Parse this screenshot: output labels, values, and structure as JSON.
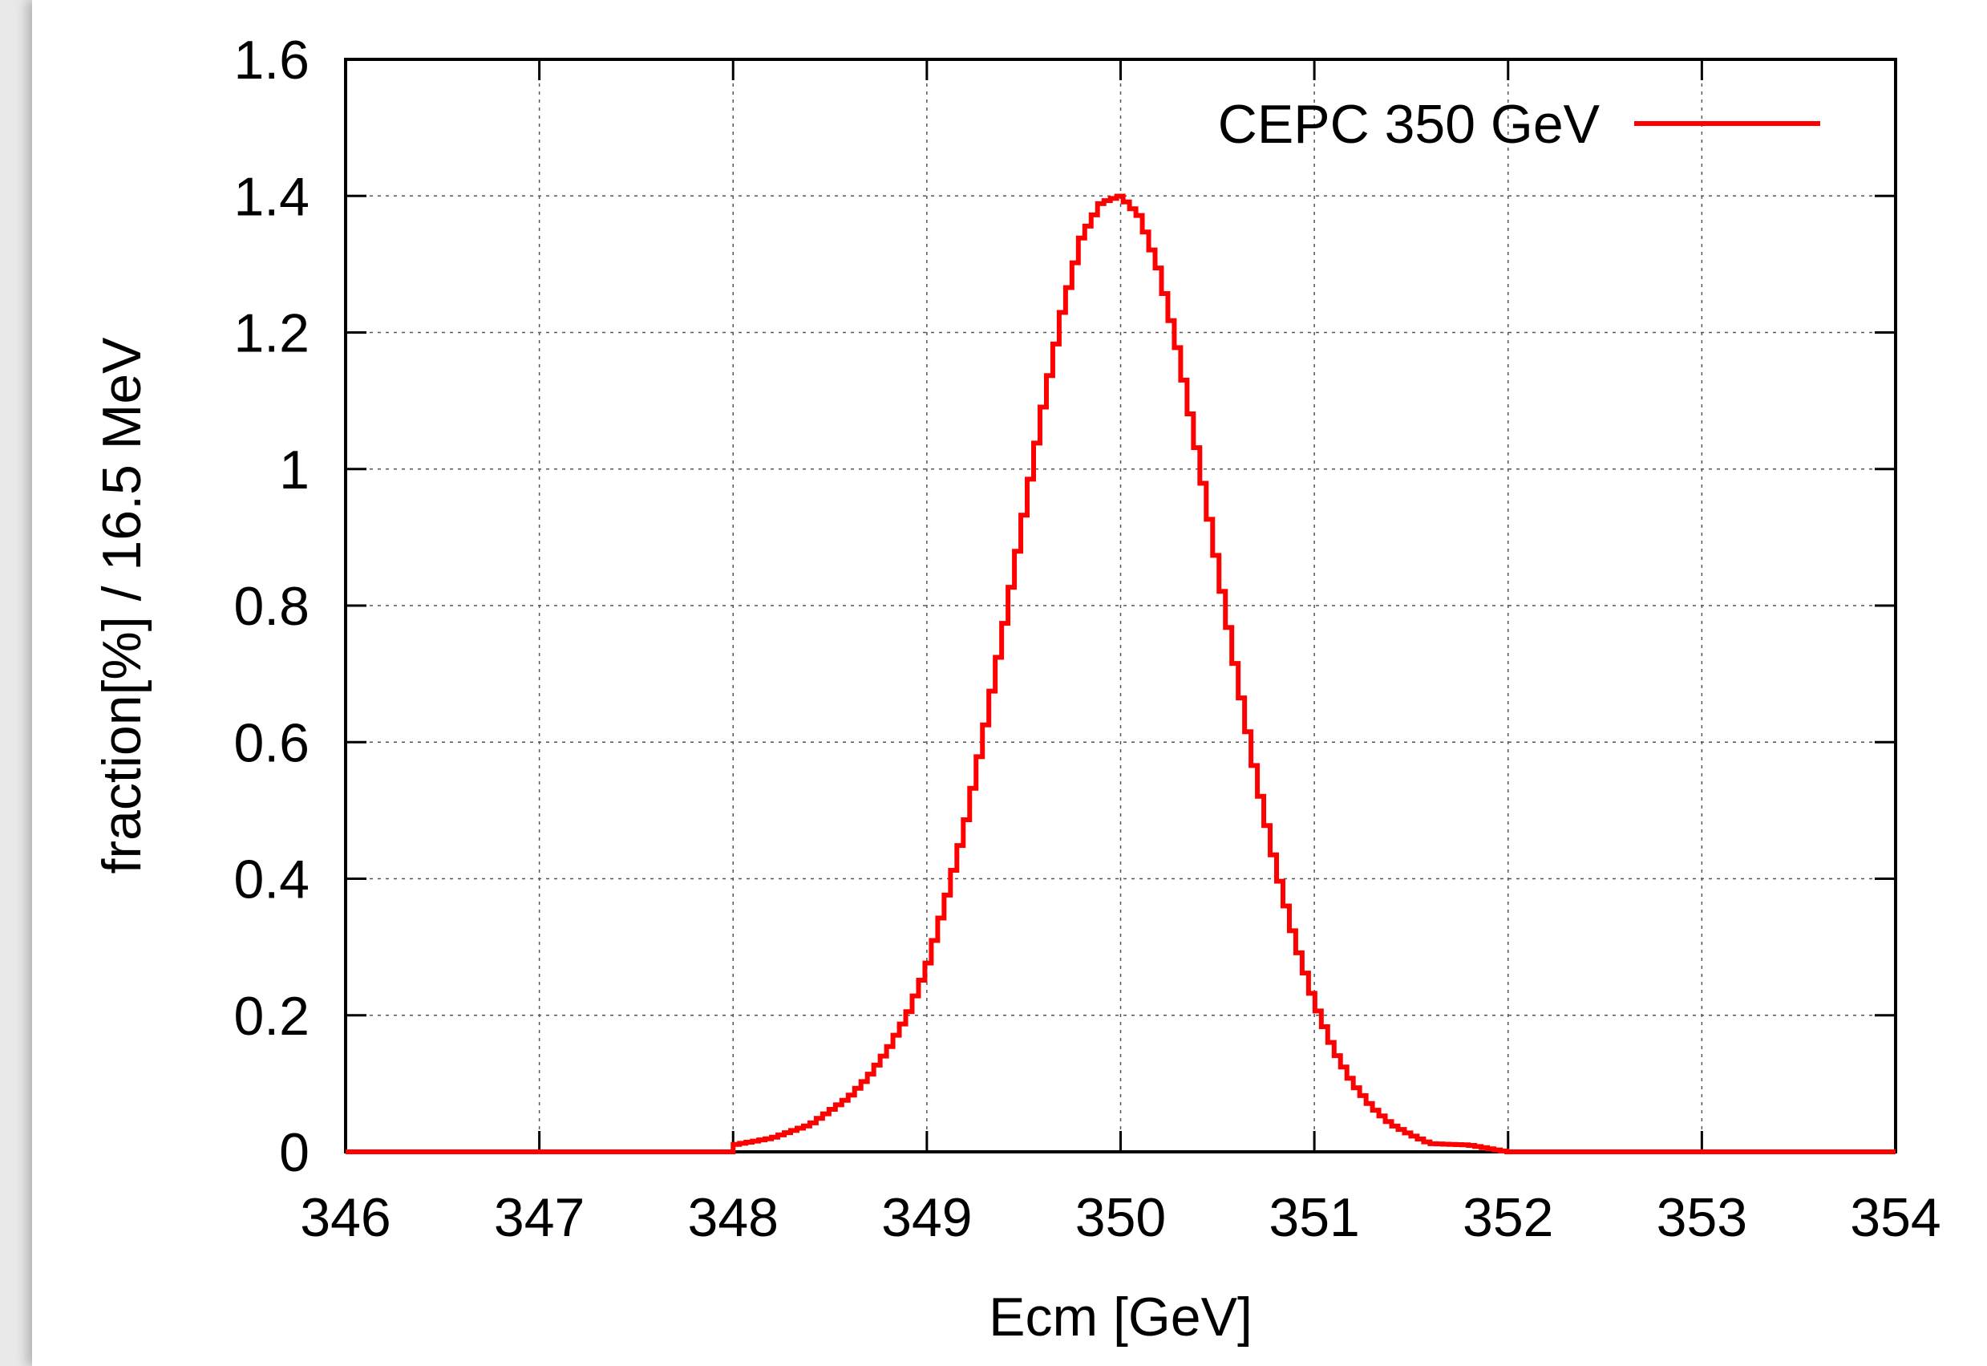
{
  "chart_data": {
    "type": "line",
    "title": "",
    "xlabel": "Ecm [GeV]",
    "ylabel": "fraction[%] / 16.5 MeV",
    "xlim": [
      346,
      354
    ],
    "ylim": [
      0,
      1.6
    ],
    "x_ticks": [
      "346",
      "347",
      "348",
      "349",
      "350",
      "351",
      "352",
      "353",
      "354"
    ],
    "y_ticks": [
      "0",
      "0.2",
      "0.4",
      "0.6",
      "0.8",
      "1",
      "1.2",
      "1.4",
      "1.6"
    ],
    "grid": true,
    "legend_position": "top-right",
    "series": [
      {
        "name": "CEPC 350 GeV",
        "color": "#ff0000",
        "style": "histogram-step",
        "x": [
          346.0,
          348.0,
          348.2,
          348.4,
          348.5,
          348.6,
          348.7,
          348.8,
          348.9,
          349.0,
          349.1,
          349.2,
          349.3,
          349.4,
          349.5,
          349.6,
          349.7,
          349.8,
          349.9,
          350.0,
          350.1,
          350.2,
          350.3,
          350.4,
          350.5,
          350.6,
          350.7,
          350.8,
          350.9,
          351.0,
          351.1,
          351.2,
          351.3,
          351.4,
          351.5,
          351.6,
          351.8,
          352.0,
          354.0
        ],
        "y": [
          0.0,
          0.01,
          0.02,
          0.04,
          0.06,
          0.08,
          0.11,
          0.15,
          0.2,
          0.27,
          0.37,
          0.48,
          0.62,
          0.77,
          0.93,
          1.09,
          1.23,
          1.34,
          1.39,
          1.4,
          1.37,
          1.29,
          1.17,
          1.02,
          0.86,
          0.7,
          0.55,
          0.42,
          0.31,
          0.22,
          0.15,
          0.1,
          0.065,
          0.04,
          0.025,
          0.012,
          0.01,
          0.0,
          0.0
        ]
      }
    ]
  }
}
